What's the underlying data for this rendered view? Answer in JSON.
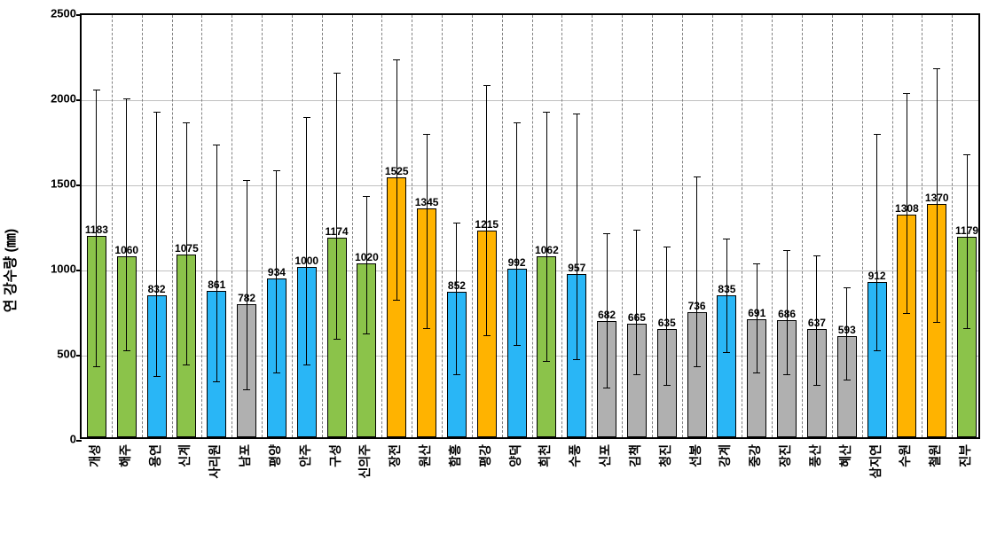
{
  "chart": {
    "type": "bar",
    "ylabel": "연 강수량 (㎜)",
    "ylabel_fontsize": 16,
    "ylim": [
      0,
      2500
    ],
    "ytick_step": 500,
    "yticks": [
      0,
      500,
      1000,
      1500,
      2000,
      2500
    ],
    "ytick_fontsize": 13,
    "xtick_fontsize": 14,
    "value_fontsize": 12,
    "bar_width_ratio": 0.65,
    "background_color": "#ffffff",
    "border_color": "#000000",
    "grid_h_color": "#c0c0c0",
    "grid_v_color": "#808080",
    "colors": {
      "green": "#8bc34a",
      "blue": "#29b6f6",
      "gray": "#b0b0b0",
      "orange": "#ffb300"
    },
    "bars": [
      {
        "label": "개성",
        "value": 1183,
        "color": "green",
        "err_low": 440,
        "err_high": 2060
      },
      {
        "label": "해주",
        "value": 1060,
        "color": "green",
        "err_low": 530,
        "err_high": 2010
      },
      {
        "label": "용연",
        "value": 832,
        "color": "blue",
        "err_low": 380,
        "err_high": 1930
      },
      {
        "label": "신계",
        "value": 1075,
        "color": "green",
        "err_low": 450,
        "err_high": 1870
      },
      {
        "label": "사리원",
        "value": 861,
        "color": "blue",
        "err_low": 350,
        "err_high": 1740
      },
      {
        "label": "남포",
        "value": 782,
        "color": "gray",
        "err_low": 300,
        "err_high": 1530
      },
      {
        "label": "평양",
        "value": 934,
        "color": "blue",
        "err_low": 400,
        "err_high": 1590
      },
      {
        "label": "안주",
        "value": 1000,
        "color": "blue",
        "err_low": 450,
        "err_high": 1900
      },
      {
        "label": "구성",
        "value": 1174,
        "color": "green",
        "err_low": 600,
        "err_high": 2160
      },
      {
        "label": "신의주",
        "value": 1020,
        "color": "green",
        "err_low": 630,
        "err_high": 1440
      },
      {
        "label": "장전",
        "value": 1525,
        "color": "orange",
        "err_low": 830,
        "err_high": 2240
      },
      {
        "label": "원산",
        "value": 1345,
        "color": "orange",
        "err_low": 660,
        "err_high": 1800
      },
      {
        "label": "함흥",
        "value": 852,
        "color": "blue",
        "err_low": 390,
        "err_high": 1280
      },
      {
        "label": "평강",
        "value": 1215,
        "color": "orange",
        "err_low": 620,
        "err_high": 2090
      },
      {
        "label": "양덕",
        "value": 992,
        "color": "blue",
        "err_low": 560,
        "err_high": 1870
      },
      {
        "label": "희천",
        "value": 1062,
        "color": "green",
        "err_low": 470,
        "err_high": 1930
      },
      {
        "label": "수풍",
        "value": 957,
        "color": "blue",
        "err_low": 480,
        "err_high": 1920
      },
      {
        "label": "신포",
        "value": 682,
        "color": "gray",
        "err_low": 310,
        "err_high": 1220
      },
      {
        "label": "김책",
        "value": 665,
        "color": "gray",
        "err_low": 390,
        "err_high": 1240
      },
      {
        "label": "청진",
        "value": 635,
        "color": "gray",
        "err_low": 330,
        "err_high": 1140
      },
      {
        "label": "선봉",
        "value": 736,
        "color": "gray",
        "err_low": 440,
        "err_high": 1550
      },
      {
        "label": "강계",
        "value": 835,
        "color": "blue",
        "err_low": 520,
        "err_high": 1190
      },
      {
        "label": "중강",
        "value": 691,
        "color": "gray",
        "err_low": 400,
        "err_high": 1040
      },
      {
        "label": "장진",
        "value": 686,
        "color": "gray",
        "err_low": 390,
        "err_high": 1120
      },
      {
        "label": "풍산",
        "value": 637,
        "color": "gray",
        "err_low": 330,
        "err_high": 1090
      },
      {
        "label": "혜산",
        "value": 593,
        "color": "gray",
        "err_low": 360,
        "err_high": 900
      },
      {
        "label": "삼지연",
        "value": 912,
        "color": "blue",
        "err_low": 530,
        "err_high": 1800
      },
      {
        "label": "수원",
        "value": 1308,
        "color": "orange",
        "err_low": 750,
        "err_high": 2040
      },
      {
        "label": "철원",
        "value": 1370,
        "color": "orange",
        "err_low": 700,
        "err_high": 2190
      },
      {
        "label": "진부",
        "value": 1179,
        "color": "green",
        "err_low": 660,
        "err_high": 1680
      }
    ]
  }
}
